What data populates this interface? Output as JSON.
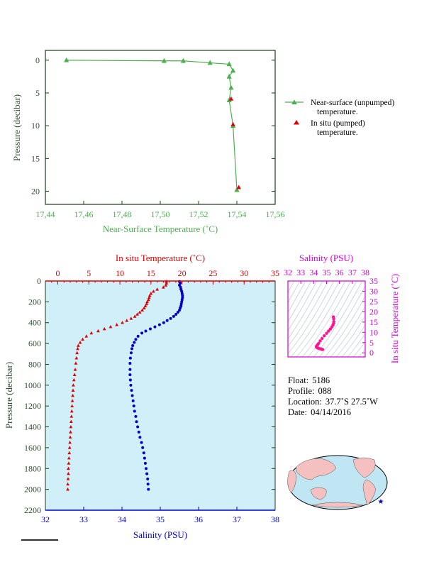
{
  "chart_data": [
    {
      "type": "line",
      "xlabel": "Near-Surface Temperature (˚C)",
      "ylabel": "Pressure (decibar)",
      "xlim": [
        17.44,
        17.56
      ],
      "ylim": [
        22,
        -1.5
      ],
      "x_ticks": [
        "17,44",
        "17,46",
        "17,48",
        "17,50",
        "17,52",
        "17,54",
        "17,56"
      ],
      "y_ticks": [
        "0",
        "5",
        "10",
        "15",
        "20"
      ],
      "legend_position": "right",
      "series": [
        {
          "name": "Near-surface (unpumped) temperature.",
          "color": "#4caf50",
          "marker": "triangle",
          "points": [
            [
              17.451,
              0
            ],
            [
              17.502,
              0.1
            ],
            [
              17.512,
              0.1
            ],
            [
              17.526,
              0.4
            ],
            [
              17.536,
              0.6
            ],
            [
              17.538,
              1.6
            ],
            [
              17.536,
              2.5
            ],
            [
              17.537,
              4.2
            ],
            [
              17.536,
              6.1
            ],
            [
              17.538,
              10.0
            ],
            [
              17.54,
              19.8
            ]
          ]
        },
        {
          "name": "In situ (pumped) temperature.",
          "color": "#e00000",
          "marker": "triangle",
          "points": [
            [
              17.537,
              5.9
            ],
            [
              17.538,
              9.8
            ],
            [
              17.541,
              19.4
            ]
          ]
        }
      ]
    },
    {
      "type": "scatter",
      "ylabel": "Pressure (decibar)",
      "ylim": [
        2200,
        0
      ],
      "y_ticks": [
        "0",
        "200",
        "400",
        "600",
        "800",
        "1000",
        "1200",
        "1400",
        "1600",
        "1800",
        "2000",
        "2200"
      ],
      "top_axis": {
        "label": "In situ Temperature (˚C)",
        "lim": [
          -2,
          35
        ],
        "ticks": [
          "0",
          "5",
          "10",
          "15",
          "20",
          "25",
          "30",
          "35"
        ],
        "color": "#e00000"
      },
      "bottom_axis": {
        "label": "Salinity (PSU)",
        "lim": [
          32,
          38
        ],
        "ticks": [
          "32",
          "33",
          "34",
          "35",
          "36",
          "37",
          "38"
        ],
        "color": "#0000cc"
      },
      "background": "#d0eff8",
      "series": [
        {
          "name": "In situ Temperature (˚C)",
          "color": "#e00000",
          "marker": "triangle",
          "points": [
            [
              17.5,
              5
            ],
            [
              17.5,
              20
            ],
            [
              17.4,
              40
            ],
            [
              17.0,
              60
            ],
            [
              16.0,
              80
            ],
            [
              15.4,
              100
            ],
            [
              15.0,
              120
            ],
            [
              14.8,
              140
            ],
            [
              14.7,
              160
            ],
            [
              14.6,
              180
            ],
            [
              14.4,
              200
            ],
            [
              14.3,
              220
            ],
            [
              14.1,
              240
            ],
            [
              13.9,
              260
            ],
            [
              13.6,
              280
            ],
            [
              13.2,
              300
            ],
            [
              12.8,
              320
            ],
            [
              12.4,
              340
            ],
            [
              11.8,
              360
            ],
            [
              11.1,
              380
            ],
            [
              10.4,
              400
            ],
            [
              9.5,
              420
            ],
            [
              8.5,
              440
            ],
            [
              7.5,
              460
            ],
            [
              6.5,
              480
            ],
            [
              5.4,
              500
            ],
            [
              4.6,
              530
            ],
            [
              4.0,
              560
            ],
            [
              3.6,
              590
            ],
            [
              3.3,
              620
            ],
            [
              3.2,
              650
            ],
            [
              3.1,
              690
            ],
            [
              3.0,
              740
            ],
            [
              2.9,
              790
            ],
            [
              2.8,
              850
            ],
            [
              2.7,
              900
            ],
            [
              2.6,
              950
            ],
            [
              2.5,
              1000
            ],
            [
              2.45,
              1050
            ],
            [
              2.4,
              1100
            ],
            [
              2.35,
              1150
            ],
            [
              2.3,
              1200
            ],
            [
              2.25,
              1250
            ],
            [
              2.2,
              1300
            ],
            [
              2.15,
              1350
            ],
            [
              2.1,
              1400
            ],
            [
              2.05,
              1450
            ],
            [
              2.0,
              1500
            ],
            [
              1.95,
              1550
            ],
            [
              1.9,
              1600
            ],
            [
              1.85,
              1650
            ],
            [
              1.8,
              1700
            ],
            [
              1.75,
              1750
            ],
            [
              1.7,
              1800
            ],
            [
              1.7,
              1850
            ],
            [
              1.65,
              1900
            ],
            [
              1.6,
              1950
            ],
            [
              1.6,
              2000
            ]
          ]
        },
        {
          "name": "Salinity (PSU)",
          "color": "#0000cc",
          "marker": "circle",
          "points": [
            [
              35.5,
              5
            ],
            [
              35.52,
              20
            ],
            [
              35.5,
              40
            ],
            [
              35.53,
              60
            ],
            [
              35.54,
              80
            ],
            [
              35.56,
              100
            ],
            [
              35.57,
              120
            ],
            [
              35.58,
              140
            ],
            [
              35.58,
              160
            ],
            [
              35.57,
              180
            ],
            [
              35.56,
              200
            ],
            [
              35.55,
              220
            ],
            [
              35.54,
              240
            ],
            [
              35.52,
              260
            ],
            [
              35.5,
              280
            ],
            [
              35.46,
              300
            ],
            [
              35.41,
              320
            ],
            [
              35.35,
              340
            ],
            [
              35.27,
              360
            ],
            [
              35.18,
              380
            ],
            [
              35.09,
              400
            ],
            [
              34.98,
              420
            ],
            [
              34.86,
              440
            ],
            [
              34.74,
              460
            ],
            [
              34.62,
              480
            ],
            [
              34.52,
              500
            ],
            [
              34.42,
              530
            ],
            [
              34.36,
              560
            ],
            [
              34.32,
              590
            ],
            [
              34.28,
              620
            ],
            [
              34.26,
              650
            ],
            [
              34.24,
              690
            ],
            [
              34.22,
              740
            ],
            [
              34.21,
              790
            ],
            [
              34.21,
              850
            ],
            [
              34.21,
              900
            ],
            [
              34.22,
              950
            ],
            [
              34.23,
              1000
            ],
            [
              34.25,
              1050
            ],
            [
              34.27,
              1100
            ],
            [
              34.29,
              1150
            ],
            [
              34.31,
              1200
            ],
            [
              34.33,
              1250
            ],
            [
              34.36,
              1300
            ],
            [
              34.38,
              1350
            ],
            [
              34.41,
              1400
            ],
            [
              34.44,
              1450
            ],
            [
              34.47,
              1500
            ],
            [
              34.51,
              1550
            ],
            [
              34.54,
              1600
            ],
            [
              34.57,
              1650
            ],
            [
              34.59,
              1700
            ],
            [
              34.61,
              1750
            ],
            [
              34.63,
              1800
            ],
            [
              34.65,
              1850
            ],
            [
              34.67,
              1900
            ],
            [
              34.68,
              1950
            ],
            [
              34.69,
              2000
            ]
          ]
        }
      ]
    },
    {
      "type": "scatter",
      "xlabel": "Salinity (PSU)",
      "ylabel": "In situ Temperature (˚C)",
      "xlim": [
        32,
        38
      ],
      "ylim": [
        -2,
        35
      ],
      "x_ticks": [
        "32",
        "33",
        "34",
        "35",
        "36",
        "37",
        "38"
      ],
      "y_ticks": [
        "0",
        "5",
        "10",
        "15",
        "20",
        "25",
        "30",
        "35"
      ],
      "color": "#ff1493",
      "grid": "density contours",
      "points": [
        [
          35.53,
          17.5
        ],
        [
          35.55,
          16.5
        ],
        [
          35.56,
          15.2
        ],
        [
          35.55,
          14.4
        ],
        [
          35.5,
          13.6
        ],
        [
          35.42,
          12.6
        ],
        [
          35.3,
          11.6
        ],
        [
          35.15,
          10.6
        ],
        [
          35.0,
          9.5
        ],
        [
          34.82,
          8.3
        ],
        [
          34.65,
          7.0
        ],
        [
          34.5,
          5.8
        ],
        [
          34.38,
          4.6
        ],
        [
          34.3,
          3.9
        ],
        [
          34.24,
          3.4
        ],
        [
          34.21,
          3.1
        ],
        [
          34.22,
          2.8
        ],
        [
          34.26,
          2.5
        ],
        [
          34.33,
          2.3
        ],
        [
          34.42,
          2.1
        ],
        [
          34.52,
          1.95
        ],
        [
          34.6,
          1.8
        ],
        [
          34.66,
          1.7
        ],
        [
          34.69,
          1.6
        ]
      ]
    }
  ],
  "legend": [
    {
      "line1": "Near-surface (unpumped)",
      "line2": "temperature."
    },
    {
      "line1": "In situ (pumped)",
      "line2": "temperature."
    }
  ],
  "info": {
    "float_label": "Float:",
    "float_value": "5186",
    "profile_label": "Profile:",
    "profile_value": "088",
    "location_label": "Location:",
    "location_value": "37.7˚S  27.5˚W",
    "date_label": "Date:",
    "date_value": "04/14/2016"
  },
  "map": {
    "ocean_color": "#bfe6f2",
    "land_color": "#f5c0c0",
    "marker_color": "#0000cc",
    "marker_lon": -27.5,
    "marker_lat": -37.7
  },
  "colors": {
    "top_axis": "#4caf50",
    "temp": "#e00000",
    "sal": "#0000cc",
    "ts": "#d000d0",
    "pressure_axis": "#2f4f2f"
  }
}
